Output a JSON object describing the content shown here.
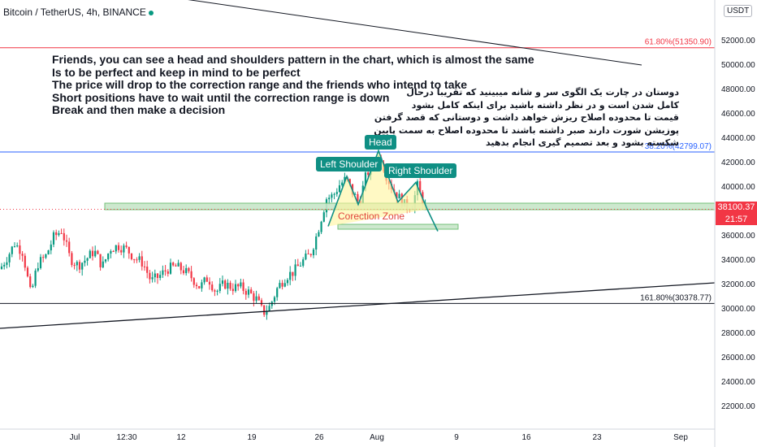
{
  "symbol": {
    "title": "Bitcoin / TetherUS, 4h, BINANCE"
  },
  "currency_badge": "USDT",
  "annotations": {
    "english_lines": [
      "Friends, you can see a head and shoulders pattern in the chart, which is almost the same",
      "Is to be perfect and keep in mind to be perfect",
      "The price will drop to the correction range and the friends who intend to take",
      "Short positions have to wait until the correction range is down",
      "Break and then make a decision"
    ],
    "persian_lines": [
      "دوستان در چارت یک الگوی سر و شانه میبینید که تقریبا درحال",
      "کامل شدن است و در نظر داشته باشید برای اینکه کامل بشود",
      "قیمت تا محدوده اصلاح ریزش خواهد داشت و دوستانی که قصد گرفتن",
      "پوزیشن شورت دارند صبر داشته باشند تا محدوده اصلاح به سمت پایین",
      "شکسته بشود و بعد تصمیم گیری انجام بدهید"
    ],
    "head_label": "Head",
    "left_shoulder_label": "Left Shoulder",
    "right_shoulder_label": "Right Shoulder",
    "zone_label": "Corection Zone"
  },
  "fib_labels": {
    "fib_618": "61.80%(51350.90)",
    "fib_382": "38.20%(42799.07)",
    "fib_1618": "161.80%(30378.77)"
  },
  "current_price": {
    "price": "38100.37",
    "countdown": "21:57"
  },
  "price_axis_labels": [
    "52000.00",
    "50000.00",
    "48000.00",
    "46000.00",
    "44000.00",
    "42000.00",
    "40000.00",
    "36000.00",
    "34000.00",
    "32000.00",
    "30000.00",
    "28000.00",
    "26000.00",
    "24000.00",
    "22000.00"
  ],
  "time_axis_labels": [
    "Jul",
    "12:30",
    "12",
    "19",
    "26",
    "Aug",
    "9",
    "16",
    "23",
    "Sep"
  ],
  "colors": {
    "up": "#089981",
    "down": "#f23645",
    "fib_red": "#f23645",
    "fib_blue": "#2962ff",
    "zone_green": "#a5d6a7",
    "pattern_teal": "#0f8f84",
    "pattern_fill": "#fff59d"
  },
  "chart_data": {
    "type": "candlestick",
    "title": "Bitcoin / TetherUS, 4h, BINANCE",
    "ylim": [
      20500,
      55000
    ],
    "yticks": [
      22000,
      24000,
      26000,
      28000,
      30000,
      32000,
      34000,
      36000,
      38000,
      40000,
      42000,
      44000,
      46000,
      48000,
      50000,
      52000
    ],
    "x_labels": [
      "Jul",
      "12:30",
      "12",
      "19",
      "26",
      "Aug",
      "9",
      "16",
      "23",
      "Sep"
    ],
    "horizontal_levels": [
      {
        "name": "61.80%",
        "value": 51350.9
      },
      {
        "name": "38.20%",
        "value": 42799.07
      },
      {
        "name": "161.80%",
        "value": 30378.77
      }
    ],
    "last_price": 38100.37,
    "price_path": [
      [
        0,
        33200
      ],
      [
        10,
        34300
      ],
      [
        18,
        35300
      ],
      [
        28,
        34600
      ],
      [
        38,
        31000
      ],
      [
        46,
        33600
      ],
      [
        56,
        34200
      ],
      [
        66,
        35800
      ],
      [
        76,
        36400
      ],
      [
        86,
        34100
      ],
      [
        96,
        33500
      ],
      [
        106,
        34000
      ],
      [
        116,
        34700
      ],
      [
        126,
        33400
      ],
      [
        136,
        34900
      ],
      [
        146,
        35100
      ],
      [
        156,
        34800
      ],
      [
        166,
        34100
      ],
      [
        176,
        33700
      ],
      [
        186,
        32200
      ],
      [
        196,
        32600
      ],
      [
        206,
        33200
      ],
      [
        216,
        33400
      ],
      [
        226,
        33100
      ],
      [
        236,
        32500
      ],
      [
        246,
        31700
      ],
      [
        256,
        32500
      ],
      [
        266,
        31300
      ],
      [
        276,
        32000
      ],
      [
        286,
        31700
      ],
      [
        296,
        31700
      ],
      [
        306,
        31300
      ],
      [
        316,
        30700
      ],
      [
        324,
        29600
      ],
      [
        332,
        30100
      ],
      [
        342,
        31700
      ],
      [
        352,
        32600
      ],
      [
        362,
        33000
      ],
      [
        372,
        33800
      ],
      [
        382,
        34400
      ],
      [
        390,
        36000
      ],
      [
        396,
        37500
      ],
      [
        402,
        39000
      ],
      [
        410,
        39200
      ],
      [
        418,
        40100
      ],
      [
        426,
        40600
      ],
      [
        434,
        39500
      ],
      [
        442,
        38600
      ],
      [
        450,
        40700
      ],
      [
        456,
        41600
      ],
      [
        462,
        41800
      ],
      [
        468,
        42500
      ],
      [
        476,
        40800
      ],
      [
        484,
        39700
      ],
      [
        492,
        39000
      ],
      [
        500,
        38300
      ],
      [
        508,
        38500
      ],
      [
        514,
        40000
      ],
      [
        520,
        38800
      ],
      [
        526,
        38100
      ]
    ],
    "trend_lines": [
      {
        "name": "upper-descending-trendline",
        "from": [
          "Jul",
          56000
        ],
        "to": [
          "Sep",
          50000
        ]
      },
      {
        "name": "lower-ascending-trendline",
        "from": [
          "Jul",
          28200
        ],
        "to": [
          "Sep",
          32100
        ]
      }
    ],
    "zones": [
      {
        "name": "neckline-zone",
        "y_low": 37950,
        "y_high": 38500
      },
      {
        "name": "correction-zone",
        "y_low": 36400,
        "y_high": 36700
      }
    ]
  }
}
